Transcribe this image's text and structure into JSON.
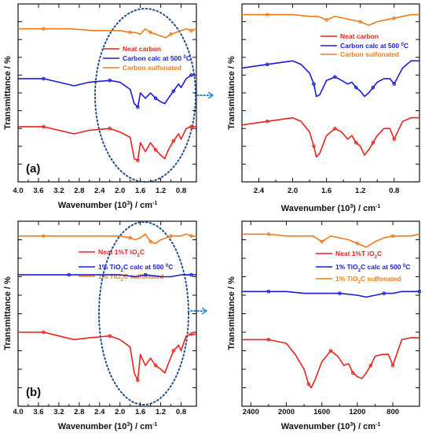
{
  "chart_data": [
    {
      "type": "line",
      "panel_letter": "(a)",
      "xlabel": "Wavenumber (10^3) / cm^-1",
      "ylabel": "Transmittance / %",
      "xlim": [
        4.0,
        0.5
      ],
      "x_ticks": [
        "4.0",
        "3.6",
        "3.2",
        "2.8",
        "2.4",
        "2.0",
        "1.6",
        "1.2",
        "0.8"
      ],
      "x_tick_values": [
        4.0,
        3.6,
        3.2,
        2.8,
        2.4,
        2.0,
        1.6,
        1.2,
        0.8
      ],
      "ylim": [
        0,
        100
      ],
      "legend_position": "top-center",
      "series": [
        {
          "name": "Neat carbon",
          "color": "#e8221c",
          "x": [
            4.0,
            3.5,
            3.2,
            2.9,
            2.6,
            2.2,
            2.0,
            1.8,
            1.72,
            1.65,
            1.6,
            1.5,
            1.4,
            1.3,
            1.2,
            1.12,
            1.05,
            0.95,
            0.85,
            0.8,
            0.7,
            0.6,
            0.5
          ],
          "y": [
            31,
            31,
            29,
            27,
            29,
            30,
            28,
            25,
            13,
            12,
            22,
            17,
            22,
            18,
            15,
            13,
            18,
            23,
            27,
            24,
            30,
            31,
            31
          ]
        },
        {
          "name": "Carbon calc at 500 °C",
          "color": "#1a1ad8",
          "x": [
            4.0,
            3.5,
            3.2,
            2.9,
            2.6,
            2.2,
            2.0,
            1.8,
            1.72,
            1.65,
            1.6,
            1.5,
            1.4,
            1.3,
            1.2,
            1.12,
            1.05,
            0.95,
            0.85,
            0.8,
            0.7,
            0.6,
            0.5
          ],
          "y": [
            58,
            58,
            56,
            54,
            56,
            57,
            56,
            52,
            44,
            42,
            50,
            47,
            50,
            47,
            45,
            44,
            47,
            51,
            55,
            53,
            58,
            60,
            60
          ]
        },
        {
          "name": "Carbon sulfonated",
          "color": "#f07b1a",
          "x": [
            4.0,
            3.5,
            3.0,
            2.5,
            2.0,
            1.8,
            1.7,
            1.6,
            1.5,
            1.4,
            1.3,
            1.2,
            1.1,
            1.0,
            0.9,
            0.8,
            0.7,
            0.6,
            0.5
          ],
          "y": [
            86,
            86,
            86,
            85,
            85,
            84,
            84,
            83,
            86,
            84,
            83,
            82,
            81,
            83,
            84,
            85,
            86,
            85,
            86
          ]
        }
      ]
    },
    {
      "type": "line",
      "xlabel": "Wavenumber (10^3) / cm^-1",
      "ylabel": "Transmittance / %",
      "xlim": [
        2.6,
        0.5
      ],
      "x_ticks": [
        "2.4",
        "2.0",
        "1.6",
        "1.2",
        "0.8"
      ],
      "x_tick_values": [
        2.4,
        2.0,
        1.6,
        1.2,
        0.8
      ],
      "ylim": [
        0,
        100
      ],
      "legend_position": "top-center",
      "series": [
        {
          "name": "Neat carbon",
          "color": "#e8221c",
          "x": [
            2.6,
            2.3,
            2.0,
            1.9,
            1.8,
            1.75,
            1.72,
            1.68,
            1.6,
            1.5,
            1.42,
            1.35,
            1.3,
            1.25,
            1.2,
            1.15,
            1.1,
            1.05,
            1.0,
            0.92,
            0.85,
            0.8,
            0.7,
            0.6,
            0.5
          ],
          "y": [
            32,
            34,
            36,
            34,
            28,
            20,
            14,
            16,
            26,
            30,
            28,
            24,
            26,
            22,
            20,
            15,
            18,
            22,
            26,
            30,
            30,
            24,
            34,
            36,
            36
          ]
        },
        {
          "name": "Carbon calc at 500 °C",
          "color": "#1a1ad8",
          "x": [
            2.6,
            2.3,
            2.0,
            1.9,
            1.8,
            1.75,
            1.72,
            1.68,
            1.6,
            1.5,
            1.42,
            1.35,
            1.3,
            1.25,
            1.2,
            1.15,
            1.1,
            1.05,
            1.0,
            0.92,
            0.85,
            0.8,
            0.7,
            0.6,
            0.5
          ],
          "y": [
            64,
            66,
            68,
            66,
            61,
            55,
            48,
            49,
            57,
            59,
            57,
            55,
            56,
            53,
            51,
            48,
            50,
            53,
            56,
            58,
            58,
            55,
            64,
            68,
            68
          ]
        },
        {
          "name": "Carbon sulfonated",
          "color": "#f07b1a",
          "x": [
            2.6,
            2.3,
            2.0,
            1.8,
            1.7,
            1.6,
            1.5,
            1.4,
            1.3,
            1.2,
            1.1,
            1.0,
            0.9,
            0.8,
            0.7,
            0.6,
            0.5
          ],
          "y": [
            94,
            94,
            94,
            93,
            93,
            91,
            93,
            92,
            91,
            90,
            88,
            90,
            91,
            92,
            93,
            94,
            94
          ]
        }
      ]
    },
    {
      "type": "line",
      "panel_letter": "(b)",
      "xlabel": "Wavenumber (10^3) / cm^-1",
      "ylabel": "Transmittance / %",
      "xlim": [
        4.0,
        0.5
      ],
      "x_ticks": [
        "4.0",
        "3.6",
        "3.2",
        "2.8",
        "2.4",
        "2.0",
        "1.6",
        "1.2",
        "0.8"
      ],
      "x_tick_values": [
        4.0,
        3.6,
        3.2,
        2.8,
        2.4,
        2.0,
        1.6,
        1.2,
        0.8
      ],
      "ylim": [
        0,
        100
      ],
      "legend_position": "top-center",
      "series": [
        {
          "name": "Neat 1%T iO2C",
          "color": "#e8221c",
          "x": [
            4.0,
            3.5,
            3.2,
            2.9,
            2.6,
            2.2,
            2.0,
            1.8,
            1.72,
            1.65,
            1.6,
            1.5,
            1.4,
            1.3,
            1.2,
            1.12,
            1.05,
            0.95,
            0.85,
            0.8,
            0.7,
            0.6,
            0.5
          ],
          "y": [
            40,
            40,
            38,
            36,
            37,
            38,
            36,
            32,
            18,
            14,
            28,
            22,
            26,
            22,
            20,
            18,
            23,
            30,
            33,
            30,
            38,
            39,
            39
          ]
        },
        {
          "name": "1% TiO2C calc at 500 °C",
          "color": "#1a1ad8",
          "x": [
            4.0,
            3.0,
            2.5,
            2.0,
            1.7,
            1.5,
            1.2,
            1.0,
            0.8,
            0.6,
            0.5
          ],
          "y": [
            71,
            71,
            71,
            71,
            70,
            71,
            70,
            70,
            71,
            71,
            71
          ]
        },
        {
          "name": "1% TiO2C sulfonated",
          "color": "#f07b1a",
          "x": [
            4.0,
            3.5,
            3.0,
            2.5,
            2.0,
            1.8,
            1.7,
            1.6,
            1.5,
            1.4,
            1.3,
            1.2,
            1.1,
            1.0,
            0.9,
            0.8,
            0.7,
            0.6,
            0.5
          ],
          "y": [
            92,
            92,
            92,
            92,
            92,
            91,
            90,
            91,
            93,
            89,
            88,
            90,
            91,
            92,
            92,
            92,
            93,
            92,
            92
          ]
        }
      ]
    },
    {
      "type": "line",
      "xlabel": "Wavenumber (10^3) / cm^-1",
      "ylabel": "Transmittance / %",
      "xlim": [
        2500,
        500
      ],
      "x_ticks": [
        "2400",
        "2000",
        "1600",
        "1200",
        "800"
      ],
      "x_tick_values": [
        2400,
        2000,
        1600,
        1200,
        800
      ],
      "ylim": [
        0,
        100
      ],
      "legend_position": "top-center",
      "series": [
        {
          "name": "Neat 1%T iO2C",
          "color": "#e8221c",
          "x": [
            2500,
            2200,
            2000,
            1900,
            1800,
            1750,
            1720,
            1680,
            1600,
            1500,
            1420,
            1350,
            1300,
            1250,
            1200,
            1150,
            1100,
            1050,
            1000,
            920,
            850,
            800,
            700,
            600,
            500
          ],
          "y": [
            36,
            36,
            34,
            28,
            20,
            12,
            10,
            14,
            24,
            30,
            27,
            22,
            23,
            18,
            16,
            15,
            18,
            22,
            27,
            28,
            28,
            22,
            36,
            37,
            37
          ]
        },
        {
          "name": "1% TiO2C calc at 500 °C",
          "color": "#1a1ad8",
          "x": [
            2500,
            2200,
            2000,
            1800,
            1600,
            1400,
            1200,
            1100,
            1000,
            900,
            800,
            700,
            600,
            500
          ],
          "y": [
            62,
            62,
            62,
            61,
            61,
            61,
            60,
            59,
            60,
            61,
            61,
            62,
            62,
            62
          ]
        },
        {
          "name": "1% TiO2C sulfonated",
          "color": "#f07b1a",
          "x": [
            2500,
            2200,
            2000,
            1800,
            1700,
            1600,
            1500,
            1400,
            1300,
            1200,
            1100,
            1000,
            900,
            800,
            700,
            600,
            500
          ],
          "y": [
            93,
            93,
            92,
            92,
            92,
            89,
            92,
            91,
            90,
            88,
            86,
            89,
            91,
            92,
            92,
            92,
            93
          ]
        }
      ]
    }
  ],
  "legends": [
    {
      "neat": "Neat carbon",
      "calc": "Carbon calc at 500 ",
      "calc_sup": "0",
      "calc_tail": "C",
      "sulf": "Carbon sulfonated"
    },
    {
      "neat": "Neat carbon",
      "calc": "Carbon calc at 500 ",
      "calc_sup": "0",
      "calc_tail": "C",
      "sulf": "Carbon sulfonated"
    },
    {
      "neat_a": "Neat 1%T iO",
      "neat_sub": "2",
      "neat_b": "C",
      "calc_a": "1% TiO",
      "calc_sub": "2",
      "calc_b": "C calc at 500 ",
      "calc_sup": "0",
      "calc_c": "C",
      "sulf_a": "1% TiO",
      "sulf_sub": "2",
      "sulf_b": "C sulfonated"
    },
    {
      "neat_a": "Neat 1%T iO",
      "neat_sub": "2",
      "neat_b": "C",
      "calc_a": "1% TiO",
      "calc_sub": "2",
      "calc_b": "C calc at 500 ",
      "calc_sup": "0",
      "calc_c": "C",
      "sulf_a": "1% TiO",
      "sulf_sub": "2",
      "sulf_b": "C sulfonated"
    }
  ],
  "axis_text": {
    "ylabel": "Transmittance / %",
    "xlabel_a": "Wavenumber (10",
    "xlabel_sup1": "3",
    "xlabel_b": ") / cm",
    "xlabel_sup2": "-1",
    "letter_a": "(a)",
    "letter_b": "(b)"
  },
  "colors": {
    "neat": "#e8221c",
    "calc": "#1a1ad8",
    "sulf": "#f07b1a",
    "ellipse": "#1f4e8c",
    "arrow": "#2a8fd0"
  }
}
